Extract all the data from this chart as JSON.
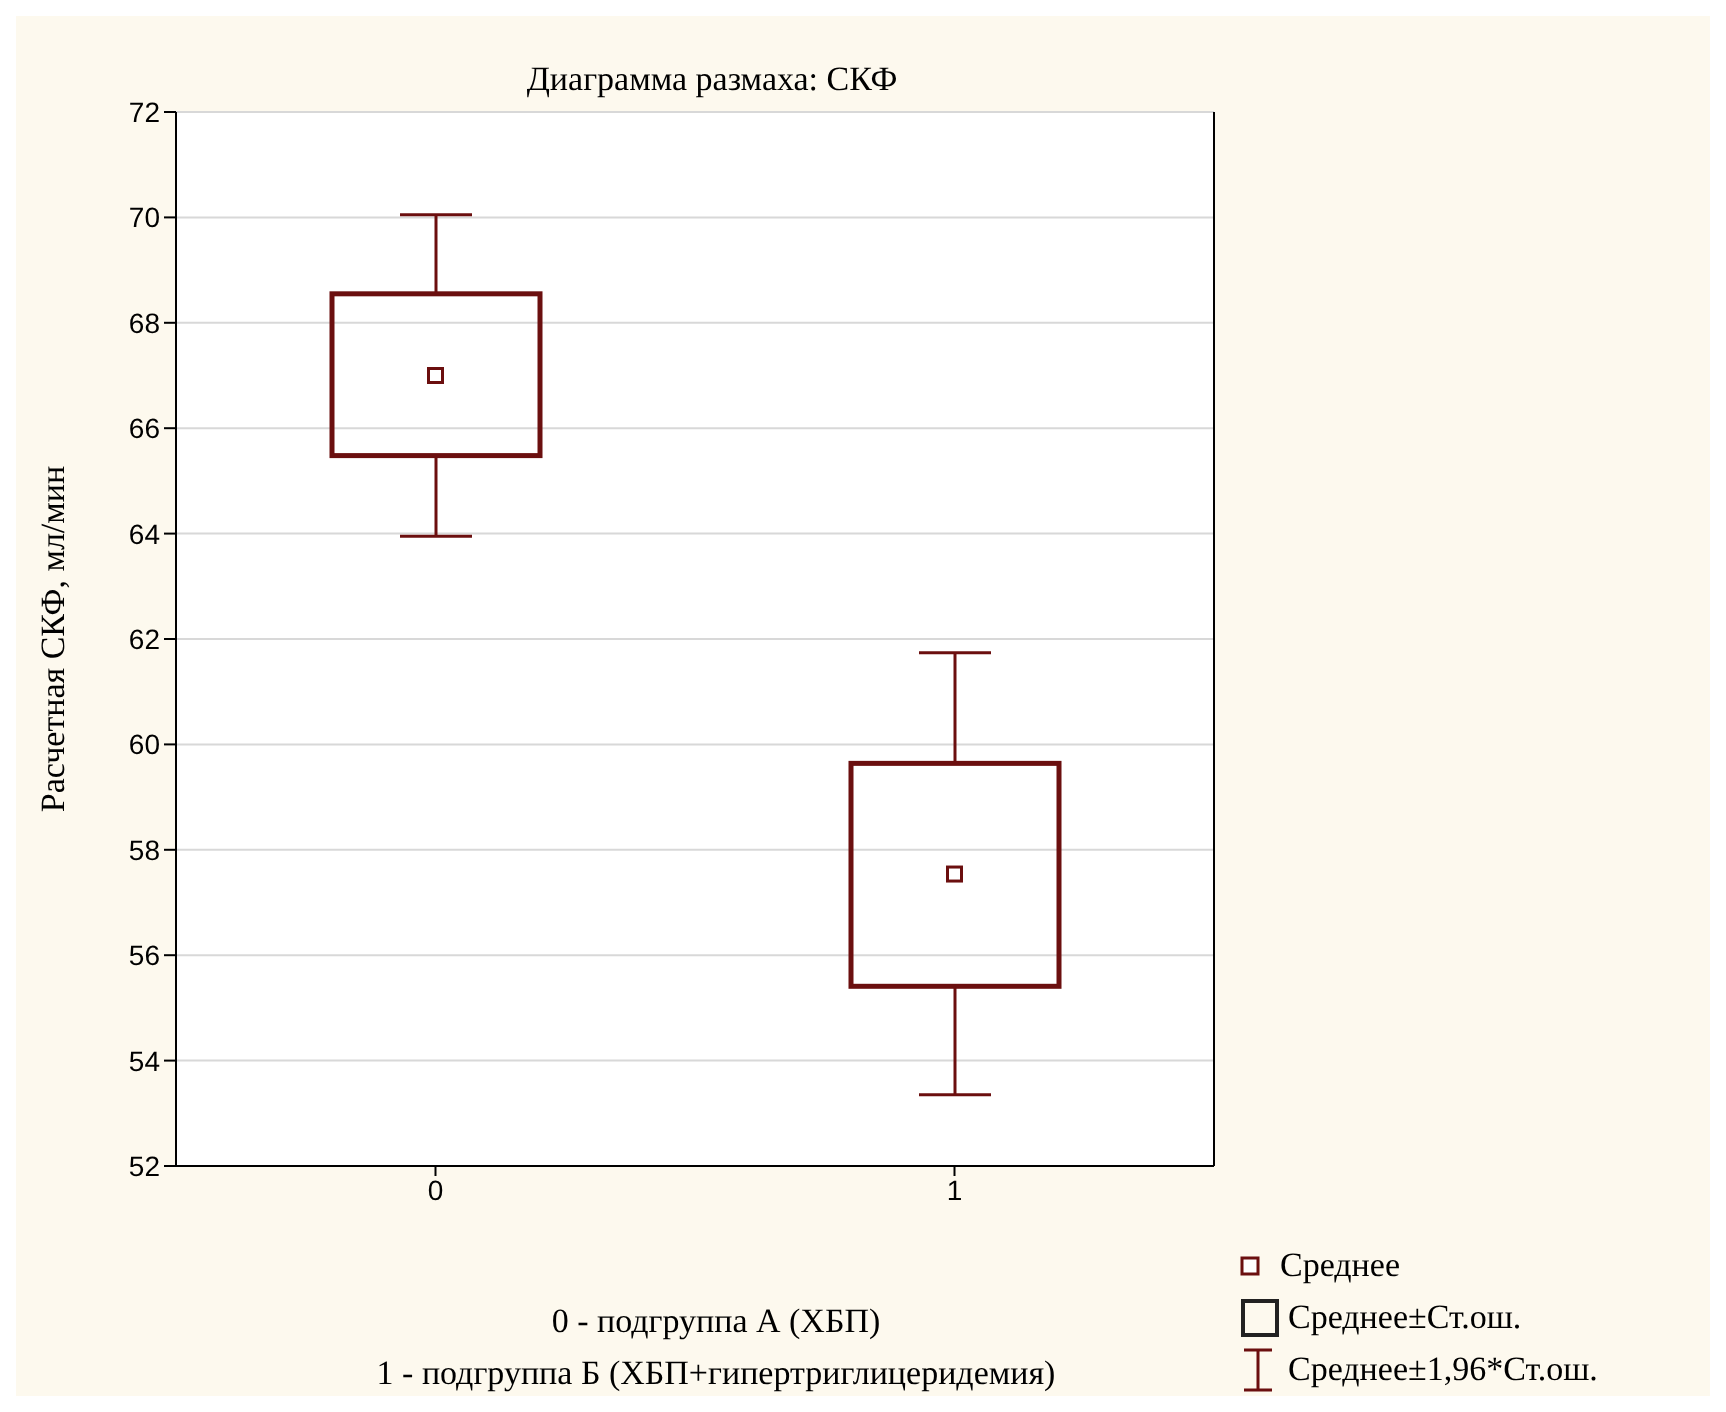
{
  "chart_data": {
    "type": "box",
    "title": "Диаграмма размаха:  СКФ",
    "ylabel": "Расчетная СКФ, мл/мин",
    "categories": [
      "0",
      "1"
    ],
    "boxes": [
      {
        "low": 63.95,
        "q1": 65.48,
        "q3": 68.55,
        "high": 70.05,
        "mean": 67.0
      },
      {
        "low": 53.35,
        "q1": 55.41,
        "q3": 59.64,
        "high": 61.74,
        "mean": 57.54
      }
    ],
    "color": "#6b0f0f",
    "ylim": [
      52,
      72
    ],
    "yticks": [
      52,
      54,
      56,
      58,
      60,
      62,
      64,
      66,
      68,
      70,
      72
    ],
    "grid": "y",
    "annotations": [
      "0 - подгруппа А (ХБП)",
      "1 - подгруппа Б (ХБП+гипертриглицеридемия)",
      "Среднее",
      "Среднее±Ст.ош.",
      "Среднее±1,96*Ст.ош."
    ]
  }
}
